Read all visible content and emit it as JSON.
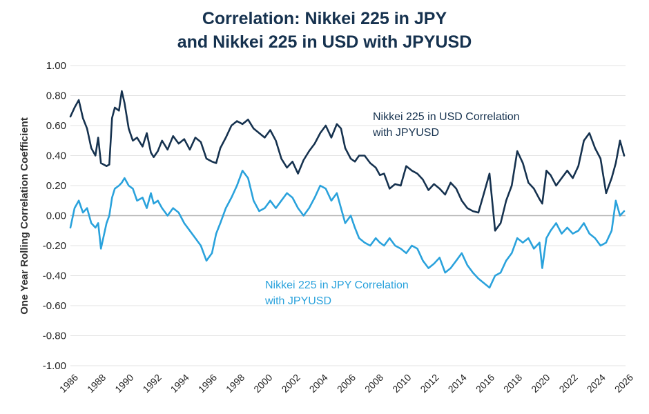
{
  "chart_data": {
    "type": "line",
    "title": [
      "Correlation: Nikkei 225 in JPY",
      "and Nikkei 225 in USD with JPYUSD"
    ],
    "xlabel": "",
    "ylabel": "One Year Rolling Correlation Coefficient",
    "xlim": [
      1986,
      2026
    ],
    "ylim": [
      -1.0,
      1.0
    ],
    "y_ticks": [
      "1.00",
      "0.80",
      "0.60",
      "0.40",
      "0.20",
      "0.00",
      "-0.20",
      "-0.40",
      "-0.60",
      "-0.80",
      "-1.00"
    ],
    "x_ticks": [
      "1986",
      "1988",
      "1990",
      "1992",
      "1994",
      "1996",
      "1998",
      "2000",
      "2002",
      "2004",
      "2006",
      "2008",
      "2010",
      "2012",
      "2014",
      "2016",
      "2018",
      "2020",
      "2022",
      "2024",
      "2026"
    ],
    "series": [
      {
        "name": "Nikkei 225 in USD Correlation with JPYUSD",
        "label_lines": [
          "Nikkei 225 in USD Correlation",
          "with JPYUSD"
        ],
        "color": "#16324f",
        "x": [
          1986.0,
          1986.3,
          1986.6,
          1986.9,
          1987.2,
          1987.5,
          1987.8,
          1988.0,
          1988.2,
          1988.6,
          1988.8,
          1989.0,
          1989.2,
          1989.5,
          1989.7,
          1989.9,
          1990.2,
          1990.5,
          1990.8,
          1991.2,
          1991.5,
          1991.8,
          1992.0,
          1992.3,
          1992.6,
          1993.0,
          1993.4,
          1993.8,
          1994.2,
          1994.6,
          1995.0,
          1995.4,
          1995.8,
          1996.2,
          1996.5,
          1996.8,
          1997.2,
          1997.6,
          1998.0,
          1998.4,
          1998.8,
          1999.2,
          1999.6,
          2000.0,
          2000.4,
          2000.8,
          2001.2,
          2001.6,
          2002.0,
          2002.4,
          2002.8,
          2003.2,
          2003.6,
          2004.0,
          2004.4,
          2004.8,
          2005.2,
          2005.5,
          2005.8,
          2006.2,
          2006.5,
          2006.8,
          2007.2,
          2007.6,
          2008.0,
          2008.3,
          2008.6,
          2009.0,
          2009.4,
          2009.8,
          2010.2,
          2010.6,
          2011.0,
          2011.4,
          2011.8,
          2012.2,
          2012.6,
          2013.0,
          2013.4,
          2013.8,
          2014.2,
          2014.6,
          2015.0,
          2015.4,
          2015.8,
          2016.2,
          2016.6,
          2017.0,
          2017.4,
          2017.8,
          2018.2,
          2018.6,
          2019.0,
          2019.4,
          2019.8,
          2020.0,
          2020.3,
          2020.6,
          2021.0,
          2021.4,
          2021.8,
          2022.2,
          2022.6,
          2023.0,
          2023.4,
          2023.8,
          2024.2,
          2024.6,
          2025.0,
          2025.3,
          2025.6,
          2025.9
        ],
        "values": [
          0.66,
          0.72,
          0.77,
          0.65,
          0.58,
          0.45,
          0.4,
          0.52,
          0.35,
          0.33,
          0.34,
          0.65,
          0.72,
          0.7,
          0.83,
          0.75,
          0.58,
          0.5,
          0.52,
          0.46,
          0.55,
          0.42,
          0.39,
          0.43,
          0.5,
          0.44,
          0.53,
          0.48,
          0.51,
          0.44,
          0.52,
          0.49,
          0.38,
          0.36,
          0.35,
          0.45,
          0.52,
          0.6,
          0.63,
          0.61,
          0.64,
          0.58,
          0.55,
          0.52,
          0.57,
          0.5,
          0.38,
          0.32,
          0.36,
          0.28,
          0.37,
          0.43,
          0.48,
          0.55,
          0.6,
          0.52,
          0.61,
          0.58,
          0.45,
          0.38,
          0.36,
          0.4,
          0.4,
          0.35,
          0.32,
          0.27,
          0.28,
          0.18,
          0.21,
          0.2,
          0.33,
          0.3,
          0.28,
          0.24,
          0.17,
          0.21,
          0.18,
          0.14,
          0.22,
          0.18,
          0.1,
          0.05,
          0.03,
          0.02,
          0.15,
          0.28,
          -0.1,
          -0.05,
          0.1,
          0.2,
          0.43,
          0.35,
          0.22,
          0.18,
          0.11,
          0.08,
          0.3,
          0.27,
          0.2,
          0.25,
          0.3,
          0.25,
          0.33,
          0.5,
          0.55,
          0.45,
          0.38,
          0.15,
          0.25,
          0.35,
          0.5,
          0.4
        ]
      },
      {
        "name": "Nikkei 225 in JPY Correlation with JPYUSD",
        "label_lines": [
          "Nikkei 225 in JPY Correlation",
          "with JPYUSD"
        ],
        "color": "#2aa2dc",
        "x": [
          1986.0,
          1986.3,
          1986.6,
          1986.9,
          1987.2,
          1987.5,
          1987.8,
          1988.0,
          1988.2,
          1988.6,
          1988.8,
          1989.0,
          1989.2,
          1989.5,
          1989.7,
          1989.9,
          1990.2,
          1990.5,
          1990.8,
          1991.2,
          1991.5,
          1991.8,
          1992.0,
          1992.3,
          1992.6,
          1993.0,
          1993.4,
          1993.8,
          1994.2,
          1994.6,
          1995.0,
          1995.4,
          1995.8,
          1996.2,
          1996.5,
          1996.8,
          1997.2,
          1997.6,
          1998.0,
          1998.4,
          1998.8,
          1999.2,
          1999.6,
          2000.0,
          2000.4,
          2000.8,
          2001.2,
          2001.6,
          2002.0,
          2002.4,
          2002.8,
          2003.2,
          2003.6,
          2004.0,
          2004.4,
          2004.8,
          2005.2,
          2005.5,
          2005.8,
          2006.2,
          2006.5,
          2006.8,
          2007.2,
          2007.6,
          2008.0,
          2008.3,
          2008.6,
          2009.0,
          2009.4,
          2009.8,
          2010.2,
          2010.6,
          2011.0,
          2011.4,
          2011.8,
          2012.2,
          2012.6,
          2013.0,
          2013.4,
          2013.8,
          2014.2,
          2014.6,
          2015.0,
          2015.4,
          2015.8,
          2016.2,
          2016.6,
          2017.0,
          2017.4,
          2017.8,
          2018.2,
          2018.6,
          2019.0,
          2019.4,
          2019.8,
          2020.0,
          2020.3,
          2020.6,
          2021.0,
          2021.4,
          2021.8,
          2022.2,
          2022.6,
          2023.0,
          2023.4,
          2023.8,
          2024.2,
          2024.6,
          2025.0,
          2025.3,
          2025.6,
          2025.9
        ],
        "values": [
          -0.08,
          0.05,
          0.1,
          0.02,
          0.05,
          -0.05,
          -0.08,
          -0.05,
          -0.22,
          -0.05,
          0.0,
          0.12,
          0.18,
          0.2,
          0.22,
          0.25,
          0.2,
          0.18,
          0.1,
          0.12,
          0.05,
          0.15,
          0.08,
          0.1,
          0.05,
          0.0,
          0.05,
          0.02,
          -0.05,
          -0.1,
          -0.15,
          -0.2,
          -0.3,
          -0.25,
          -0.12,
          -0.05,
          0.05,
          0.12,
          0.2,
          0.3,
          0.25,
          0.1,
          0.03,
          0.05,
          0.1,
          0.05,
          0.1,
          0.15,
          0.12,
          0.05,
          0.0,
          0.05,
          0.12,
          0.2,
          0.18,
          0.1,
          0.15,
          0.05,
          -0.05,
          0.0,
          -0.08,
          -0.15,
          -0.18,
          -0.2,
          -0.15,
          -0.18,
          -0.2,
          -0.15,
          -0.2,
          -0.22,
          -0.25,
          -0.2,
          -0.22,
          -0.3,
          -0.35,
          -0.32,
          -0.28,
          -0.38,
          -0.35,
          -0.3,
          -0.25,
          -0.33,
          -0.38,
          -0.42,
          -0.45,
          -0.48,
          -0.4,
          -0.38,
          -0.3,
          -0.25,
          -0.15,
          -0.18,
          -0.15,
          -0.22,
          -0.18,
          -0.35,
          -0.15,
          -0.1,
          -0.05,
          -0.12,
          -0.08,
          -0.12,
          -0.1,
          -0.05,
          -0.12,
          -0.15,
          -0.2,
          -0.18,
          -0.1,
          0.1,
          0.0,
          0.03
        ]
      }
    ]
  }
}
